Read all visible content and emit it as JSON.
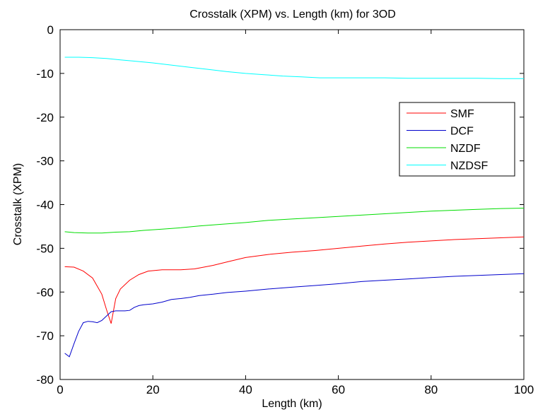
{
  "chart_data": {
    "type": "line",
    "title": "Crosstalk (XPM) vs. Length (km) for 3OD",
    "xlabel": "Length (km)",
    "ylabel": "Crosstalk (XPM)",
    "xlim": [
      0,
      100
    ],
    "ylim": [
      -80,
      0
    ],
    "xticks": [
      0,
      20,
      40,
      60,
      80,
      100
    ],
    "yticks": [
      0,
      -10,
      -20,
      -30,
      -40,
      -50,
      -60,
      -70,
      -80
    ],
    "xtick_labels": [
      "0",
      "20",
      "40",
      "60",
      "80",
      "100"
    ],
    "ytick_labels": [
      "0",
      "-10",
      "-20",
      "-30",
      "-40",
      "-50",
      "-60",
      "-70",
      "-80"
    ],
    "grid": false,
    "legend_position": "right",
    "series": [
      {
        "name": "SMF",
        "color": "#ff0000",
        "points": [
          [
            1,
            -54.2
          ],
          [
            3,
            -54.3
          ],
          [
            5,
            -55.2
          ],
          [
            7,
            -56.8
          ],
          [
            9,
            -60.5
          ],
          [
            10,
            -64
          ],
          [
            11,
            -67.2
          ],
          [
            12,
            -61.5
          ],
          [
            13,
            -59.3
          ],
          [
            15,
            -57.3
          ],
          [
            17,
            -56
          ],
          [
            19,
            -55.2
          ],
          [
            22,
            -54.9
          ],
          [
            26,
            -54.9
          ],
          [
            29,
            -54.7
          ],
          [
            33,
            -53.9
          ],
          [
            36,
            -53.1
          ],
          [
            40,
            -52.1
          ],
          [
            45,
            -51.4
          ],
          [
            50,
            -50.9
          ],
          [
            55,
            -50.5
          ],
          [
            60,
            -50.0
          ],
          [
            65,
            -49.5
          ],
          [
            70,
            -49.0
          ],
          [
            75,
            -48.6
          ],
          [
            80,
            -48.3
          ],
          [
            85,
            -48.0
          ],
          [
            90,
            -47.8
          ],
          [
            95,
            -47.6
          ],
          [
            100,
            -47.4
          ]
        ]
      },
      {
        "name": "DCF",
        "color": "#0000cc",
        "points": [
          [
            1,
            -74
          ],
          [
            2,
            -74.8
          ],
          [
            3,
            -71.8
          ],
          [
            4,
            -69
          ],
          [
            5,
            -67
          ],
          [
            6,
            -66.7
          ],
          [
            7,
            -66.8
          ],
          [
            8,
            -67
          ],
          [
            9,
            -66.5
          ],
          [
            10,
            -65.5
          ],
          [
            11,
            -64.5
          ],
          [
            12,
            -64.3
          ],
          [
            14,
            -64.3
          ],
          [
            15,
            -64.2
          ],
          [
            16,
            -63.5
          ],
          [
            17,
            -63.1
          ],
          [
            18,
            -62.9
          ],
          [
            20,
            -62.7
          ],
          [
            22,
            -62.3
          ],
          [
            24,
            -61.7
          ],
          [
            26,
            -61.5
          ],
          [
            28,
            -61.2
          ],
          [
            30,
            -60.8
          ],
          [
            33,
            -60.5
          ],
          [
            36,
            -60.1
          ],
          [
            40,
            -59.8
          ],
          [
            45,
            -59.3
          ],
          [
            50,
            -58.9
          ],
          [
            55,
            -58.5
          ],
          [
            60,
            -58.1
          ],
          [
            65,
            -57.6
          ],
          [
            70,
            -57.3
          ],
          [
            75,
            -57.0
          ],
          [
            80,
            -56.7
          ],
          [
            85,
            -56.4
          ],
          [
            90,
            -56.2
          ],
          [
            95,
            -56.0
          ],
          [
            100,
            -55.8
          ]
        ]
      },
      {
        "name": "NZDF",
        "color": "#00dd00",
        "points": [
          [
            1,
            -46.2
          ],
          [
            3,
            -46.4
          ],
          [
            6,
            -46.5
          ],
          [
            9,
            -46.5
          ],
          [
            12,
            -46.3
          ],
          [
            15,
            -46.2
          ],
          [
            18,
            -45.9
          ],
          [
            22,
            -45.6
          ],
          [
            26,
            -45.3
          ],
          [
            30,
            -44.9
          ],
          [
            35,
            -44.5
          ],
          [
            40,
            -44.1
          ],
          [
            45,
            -43.6
          ],
          [
            50,
            -43.3
          ],
          [
            55,
            -43.0
          ],
          [
            60,
            -42.7
          ],
          [
            65,
            -42.4
          ],
          [
            70,
            -42.1
          ],
          [
            75,
            -41.8
          ],
          [
            80,
            -41.5
          ],
          [
            85,
            -41.3
          ],
          [
            90,
            -41.1
          ],
          [
            95,
            -40.9
          ],
          [
            100,
            -40.8
          ]
        ]
      },
      {
        "name": "NZDSF",
        "color": "#00ffff",
        "points": [
          [
            1,
            -6.3
          ],
          [
            4,
            -6.3
          ],
          [
            7,
            -6.4
          ],
          [
            10,
            -6.6
          ],
          [
            13,
            -6.9
          ],
          [
            16,
            -7.2
          ],
          [
            20,
            -7.6
          ],
          [
            24,
            -8.1
          ],
          [
            28,
            -8.6
          ],
          [
            32,
            -9.1
          ],
          [
            36,
            -9.6
          ],
          [
            40,
            -10.0
          ],
          [
            44,
            -10.3
          ],
          [
            48,
            -10.6
          ],
          [
            52,
            -10.8
          ],
          [
            56,
            -11.0
          ],
          [
            60,
            -11.0
          ],
          [
            65,
            -11.0
          ],
          [
            70,
            -11.0
          ],
          [
            75,
            -11.1
          ],
          [
            80,
            -11.1
          ],
          [
            85,
            -11.1
          ],
          [
            90,
            -11.1
          ],
          [
            95,
            -11.2
          ],
          [
            100,
            -11.2
          ]
        ]
      }
    ]
  }
}
